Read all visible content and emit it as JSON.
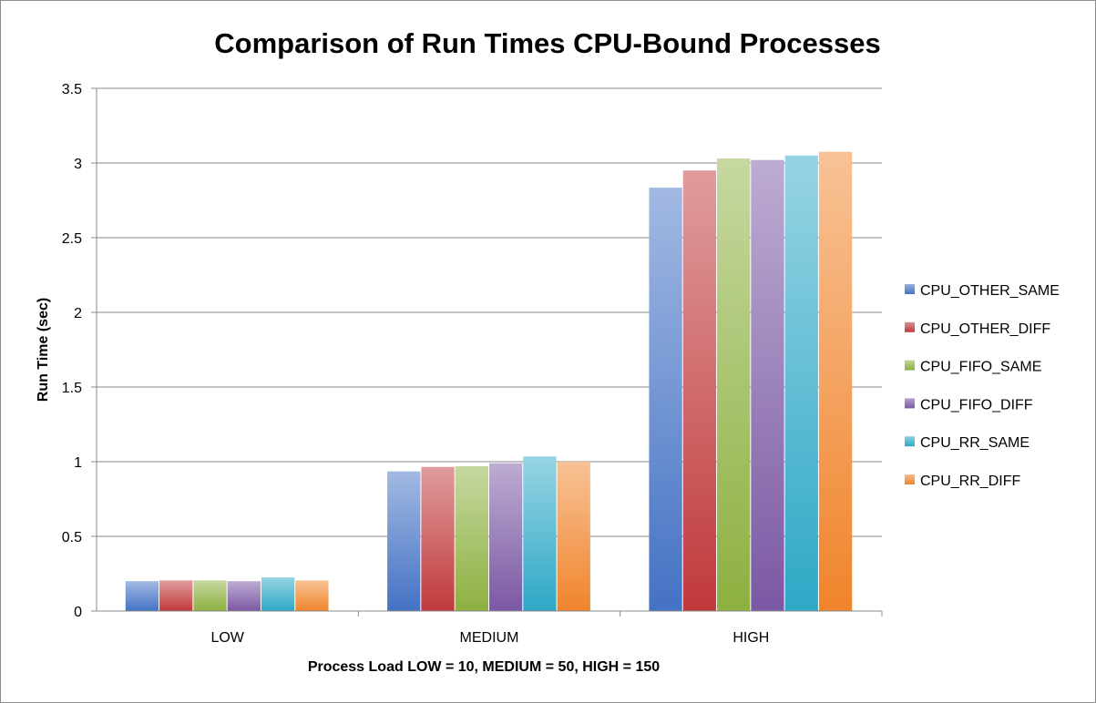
{
  "chart_data": {
    "type": "bar",
    "title": "Comparison of Run Times CPU-Bound Processes",
    "xlabel": "Process Load LOW = 10, MEDIUM = 50, HIGH = 150",
    "ylabel": "Run Time (sec)",
    "categories": [
      "LOW",
      "MEDIUM",
      "HIGH"
    ],
    "ylim": [
      0,
      3.5
    ],
    "yticks": [
      0,
      0.5,
      1,
      1.5,
      2,
      2.5,
      3,
      3.5
    ],
    "ytick_labels": [
      "0",
      "0.5",
      "1",
      "1.5",
      "2",
      "2.5",
      "3",
      "3.5"
    ],
    "grid": true,
    "legend_position": "right",
    "series": [
      {
        "name": "CPU_OTHER_SAME",
        "color": "#4472c4",
        "values": [
          0.2,
          0.935,
          2.835
        ]
      },
      {
        "name": "CPU_OTHER_DIFF",
        "color": "#c0393b",
        "values": [
          0.205,
          0.965,
          2.95
        ]
      },
      {
        "name": "CPU_FIFO_SAME",
        "color": "#8db040",
        "values": [
          0.205,
          0.97,
          3.03
        ]
      },
      {
        "name": "CPU_FIFO_DIFF",
        "color": "#7b58a4",
        "values": [
          0.2,
          0.99,
          3.02
        ]
      },
      {
        "name": "CPU_RR_SAME",
        "color": "#2ea8c6",
        "values": [
          0.225,
          1.035,
          3.05
        ]
      },
      {
        "name": "CPU_RR_DIFF",
        "color": "#f0842c",
        "values": [
          0.205,
          1.0,
          3.075
        ]
      }
    ]
  }
}
